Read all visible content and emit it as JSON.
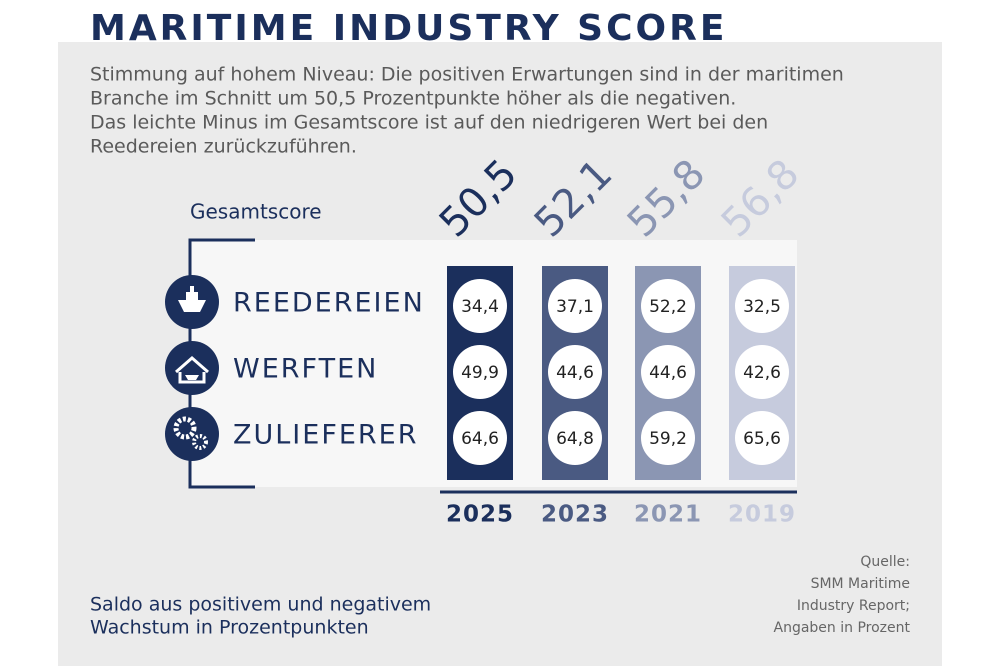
{
  "header": {
    "title": "MARITIME INDUSTRY SCORE",
    "intro": [
      "Stimmung auf hohem Niveau: Die positiven Erwartungen sind in der maritimen",
      "Branche im Schnitt um 50,5 Prozentpunkte höher als die negativen.",
      "Das leichte Minus im Gesamtscore ist auf den niedrigeren Wert bei den",
      "Reedereien zurückzuführen."
    ]
  },
  "table": {
    "total_label": "Gesamtscore",
    "rows": [
      "REEDEREIEN",
      "WERFTEN",
      "ZULIEFERER"
    ],
    "columns": [
      {
        "year": "2025",
        "total": "50,5",
        "color": "#1b2f5c",
        "values": [
          "34,4",
          "49,9",
          "64,6"
        ]
      },
      {
        "year": "2023",
        "total": "52,1",
        "color": "#4a5a82",
        "values": [
          "37,1",
          "44,6",
          "64,8"
        ]
      },
      {
        "year": "2021",
        "total": "55,8",
        "color": "#8b96b3",
        "values": [
          "52,2",
          "44,6",
          "59,2"
        ]
      },
      {
        "year": "2019",
        "total": "56,8",
        "color": "#c6cbdd",
        "values": [
          "32,5",
          "42,6",
          "65,6"
        ]
      }
    ]
  },
  "footer": {
    "note": [
      "Saldo aus positivem und negativem",
      "Wachstum in Prozentpunkten"
    ],
    "source": [
      "Quelle:",
      "SMM Maritime",
      "Industry Report;",
      "Angaben in Prozent"
    ]
  }
}
